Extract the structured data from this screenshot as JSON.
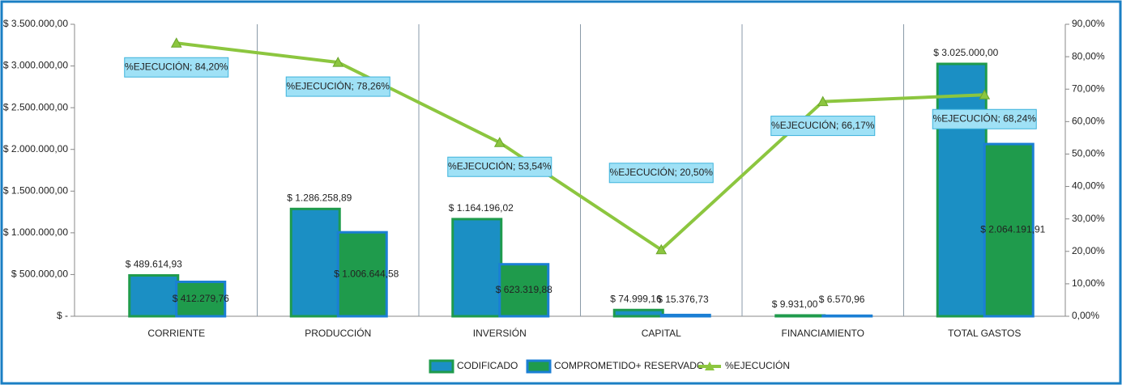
{
  "chart_data": {
    "type": "bar",
    "categories": [
      "CORRIENTE",
      "PRODUCCIÓN",
      "INVERSIÓN",
      "CAPITAL",
      "FINANCIAMIENTO",
      "TOTAL GASTOS"
    ],
    "series": [
      {
        "name": "CODIFICADO",
        "type": "bar",
        "color": "#1b8fc4",
        "border": "#1f9b4c",
        "values": [
          489614.93,
          1286258.89,
          1164196.02,
          74999.16,
          9931.0,
          3025000.0
        ],
        "value_labels": [
          "$ 489.614,93",
          "$ 1.286.258,89",
          "$ 1.164.196,02",
          "$ 74.999,16",
          "$ 9.931,00",
          "$ 3.025.000,00"
        ]
      },
      {
        "name": "COMPROMETIDO+ RESERVADO",
        "type": "bar",
        "color": "#1f9b4c",
        "border": "#1b7fd4",
        "values": [
          412279.76,
          1006644.58,
          623319.88,
          15376.73,
          6570.96,
          2064191.91
        ],
        "value_labels": [
          "$ 412.279,76",
          "$ 1.006.644,58",
          "$ 623.319,88",
          "$ 15.376,73",
          "$ 6.570,96",
          "$ 2.064.191,91"
        ]
      },
      {
        "name": "%EJECUCIÓN",
        "type": "line",
        "axis": "y2",
        "color": "#8cc63f",
        "values": [
          84.2,
          78.26,
          53.54,
          20.5,
          66.17,
          68.24
        ],
        "value_labels": [
          "%EJECUCIÓN; 84,20%",
          "%EJECUCIÓN; 78,26%",
          "%EJECUCIÓN; 53,54%",
          "%EJECUCIÓN; 20,50%",
          "%EJECUCIÓN; 66,17%",
          "%EJECUCIÓN; 68,24%"
        ]
      }
    ],
    "ylim": [
      0,
      3500000
    ],
    "yticks": [
      {
        "value": 0,
        "label": "$ -"
      },
      {
        "value": 500000,
        "label": "$ 500.000,00"
      },
      {
        "value": 1000000,
        "label": "$ 1.000.000,00"
      },
      {
        "value": 1500000,
        "label": "$ 1.500.000,00"
      },
      {
        "value": 2000000,
        "label": "$ 2.000.000,00"
      },
      {
        "value": 2500000,
        "label": "$ 2.500.000,00"
      },
      {
        "value": 3000000,
        "label": "$ 3.000.000,00"
      },
      {
        "value": 3500000,
        "label": "$ 3.500.000,00"
      }
    ],
    "y2lim": [
      0,
      90
    ],
    "y2ticks": [
      {
        "value": 0,
        "label": "0,00%"
      },
      {
        "value": 10,
        "label": "10,00%"
      },
      {
        "value": 20,
        "label": "20,00%"
      },
      {
        "value": 30,
        "label": "30,00%"
      },
      {
        "value": 40,
        "label": "40,00%"
      },
      {
        "value": 50,
        "label": "50,00%"
      },
      {
        "value": 60,
        "label": "60,00%"
      },
      {
        "value": 70,
        "label": "70,00%"
      },
      {
        "value": 80,
        "label": "80,00%"
      },
      {
        "value": 90,
        "label": "90,00%"
      }
    ],
    "legend": "bottom",
    "category_separators": true
  }
}
